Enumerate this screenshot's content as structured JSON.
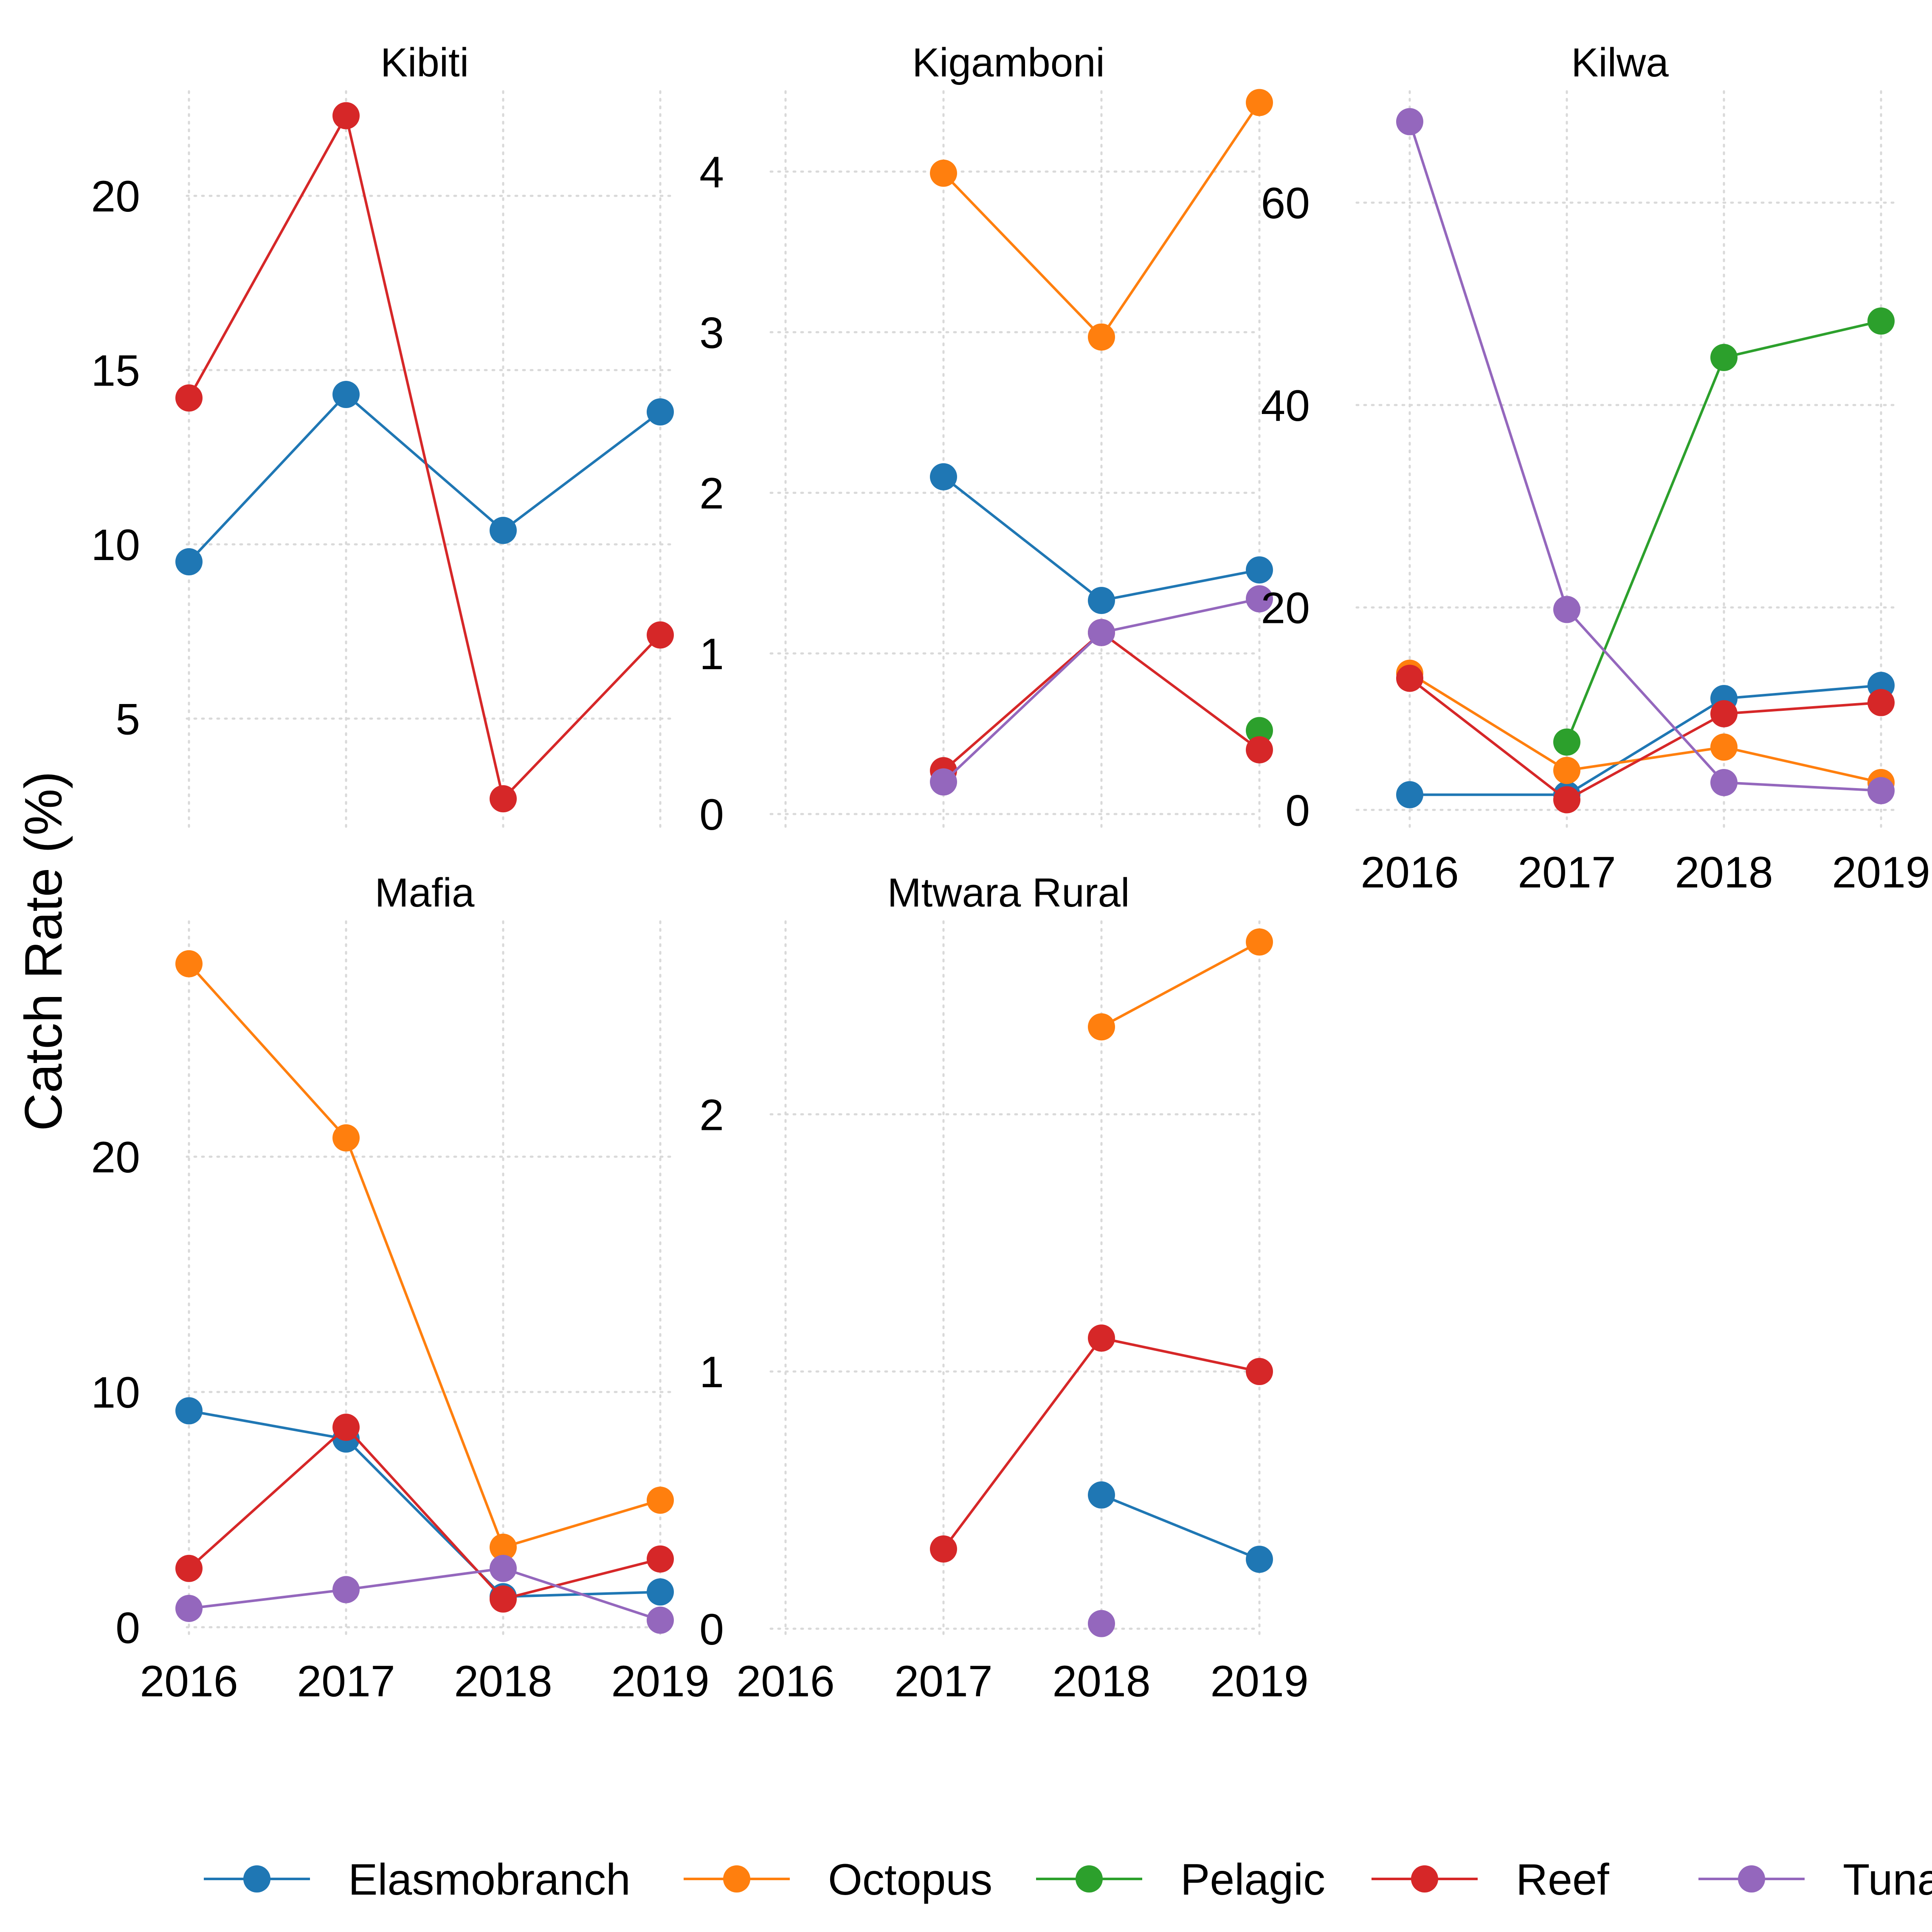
{
  "chart_data": {
    "type": "line",
    "ylabel": "Catch Rate (%)",
    "x": [
      2016,
      2017,
      2018,
      2019
    ],
    "legend": {
      "position": "bottom",
      "entries": [
        "Elasmobranch",
        "Octopus",
        "Pelagic",
        "Reef",
        "Tuna"
      ]
    },
    "colors": {
      "Elasmobranch": "#1f77b4",
      "Octopus": "#ff7f0e",
      "Pelagic": "#2ca02c",
      "Reef": "#d62728",
      "Tuna": "#9467bd"
    },
    "grid": true,
    "panels": [
      {
        "title": "Kibiti",
        "ylim": [
          1.8,
          23
        ],
        "yticks": [
          5,
          10,
          15,
          20
        ],
        "show_x_ticks": false,
        "series": [
          {
            "name": "Elasmobranch",
            "points": [
              [
                2016,
                9.5
              ],
              [
                2017,
                14.3
              ],
              [
                2018,
                10.4
              ],
              [
                2019,
                13.8
              ]
            ]
          },
          {
            "name": "Reef",
            "points": [
              [
                2016,
                14.2
              ],
              [
                2017,
                22.3
              ],
              [
                2018,
                2.7
              ],
              [
                2019,
                7.4
              ]
            ]
          }
        ]
      },
      {
        "title": "Kigamboni",
        "ylim": [
          -0.1,
          4.5
        ],
        "yticks": [
          0,
          1,
          2,
          3,
          4
        ],
        "show_x_ticks": false,
        "series": [
          {
            "name": "Elasmobranch",
            "points": [
              [
                2017,
                2.1
              ],
              [
                2018,
                1.33
              ],
              [
                2019,
                1.52
              ]
            ]
          },
          {
            "name": "Octopus",
            "points": [
              [
                2017,
                3.99
              ],
              [
                2018,
                2.97
              ],
              [
                2019,
                4.43
              ]
            ]
          },
          {
            "name": "Pelagic",
            "points": [
              [
                2019,
                0.52
              ]
            ]
          },
          {
            "name": "Reef",
            "points": [
              [
                2017,
                0.27
              ],
              [
                2018,
                1.13
              ],
              [
                2019,
                0.4
              ]
            ]
          },
          {
            "name": "Tuna",
            "points": [
              [
                2017,
                0.2
              ],
              [
                2018,
                1.13
              ],
              [
                2019,
                1.34
              ]
            ]
          }
        ]
      },
      {
        "title": "Kilwa",
        "ylim": [
          -2,
          71
        ],
        "yticks": [
          0,
          20,
          40,
          60
        ],
        "show_x_ticks": true,
        "series": [
          {
            "name": "Elasmobranch",
            "points": [
              [
                2016,
                1.5
              ],
              [
                2017,
                1.5
              ],
              [
                2018,
                11
              ],
              [
                2019,
                12.3
              ]
            ]
          },
          {
            "name": "Octopus",
            "points": [
              [
                2016,
                13.5
              ],
              [
                2017,
                3.9
              ],
              [
                2018,
                6.2
              ],
              [
                2019,
                2.7
              ]
            ]
          },
          {
            "name": "Pelagic",
            "points": [
              [
                2017,
                6.7
              ],
              [
                2018,
                44.7
              ],
              [
                2019,
                48.3
              ]
            ]
          },
          {
            "name": "Reef",
            "points": [
              [
                2016,
                13
              ],
              [
                2017,
                1
              ],
              [
                2018,
                9.5
              ],
              [
                2019,
                10.6
              ]
            ]
          },
          {
            "name": "Tuna",
            "points": [
              [
                2016,
                68
              ],
              [
                2017,
                19.8
              ],
              [
                2018,
                2.7
              ],
              [
                2019,
                1.9
              ]
            ]
          }
        ]
      },
      {
        "title": "Mafia",
        "ylim": [
          -0.5,
          30
        ],
        "yticks": [
          0,
          10,
          20
        ],
        "show_x_ticks": true,
        "series": [
          {
            "name": "Elasmobranch",
            "points": [
              [
                2016,
                9.2
              ],
              [
                2017,
                8
              ],
              [
                2018,
                1.3
              ],
              [
                2019,
                1.5
              ]
            ]
          },
          {
            "name": "Octopus",
            "points": [
              [
                2016,
                28.2
              ],
              [
                2017,
                20.8
              ],
              [
                2018,
                3.4
              ],
              [
                2019,
                5.4
              ]
            ]
          },
          {
            "name": "Reef",
            "points": [
              [
                2016,
                2.5
              ],
              [
                2017,
                8.5
              ],
              [
                2018,
                1.2
              ],
              [
                2019,
                2.9
              ]
            ]
          },
          {
            "name": "Tuna",
            "points": [
              [
                2016,
                0.8
              ],
              [
                2017,
                1.6
              ],
              [
                2018,
                2.5
              ],
              [
                2019,
                0.3
              ]
            ]
          }
        ]
      },
      {
        "title": "Mtwara Rural",
        "ylim": [
          -0.04,
          2.75
        ],
        "yticks": [
          0,
          1,
          2
        ],
        "show_x_ticks": true,
        "series": [
          {
            "name": "Elasmobranch",
            "points": [
              [
                2018,
                0.52
              ],
              [
                2019,
                0.27
              ]
            ]
          },
          {
            "name": "Octopus",
            "points": [
              [
                2018,
                2.34
              ],
              [
                2019,
                2.67
              ]
            ]
          },
          {
            "name": "Reef",
            "points": [
              [
                2017,
                0.31
              ],
              [
                2018,
                1.13
              ],
              [
                2019,
                1.0
              ]
            ]
          },
          {
            "name": "Tuna",
            "points": [
              [
                2018,
                0.02
              ]
            ]
          }
        ]
      }
    ]
  }
}
